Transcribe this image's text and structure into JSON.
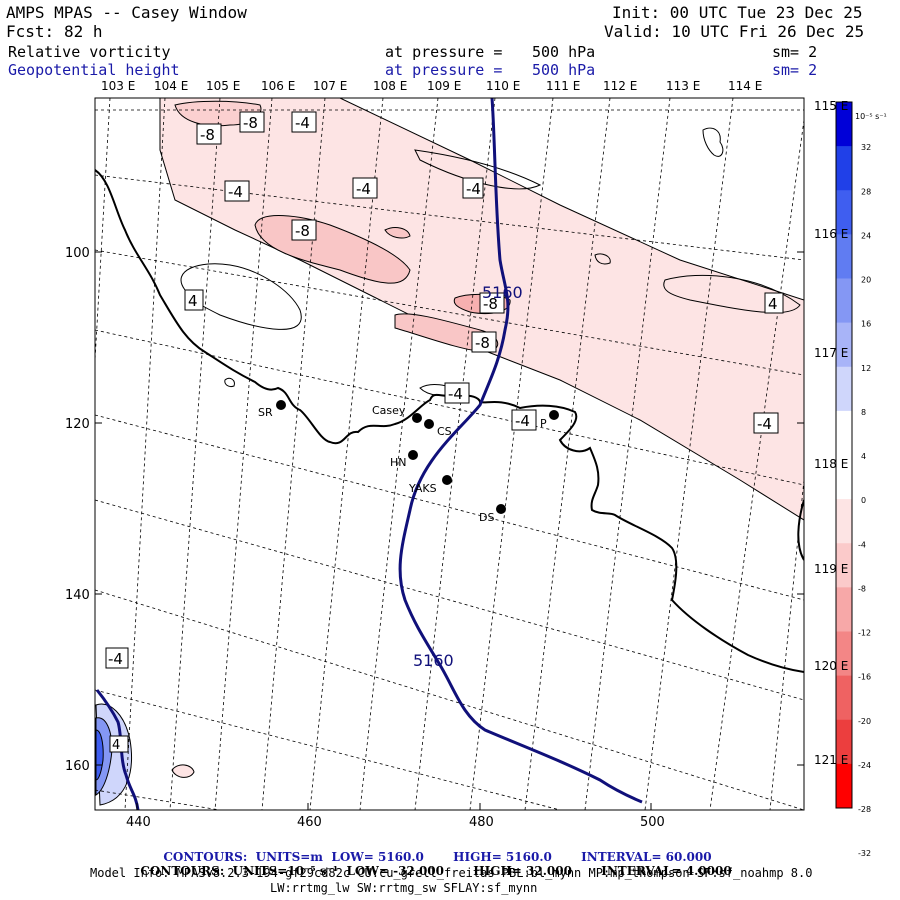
{
  "header": {
    "app_title": "AMPS MPAS -- Casey Window",
    "forecast_label": "Fcst:",
    "forecast_value": "82 h",
    "init": "Init: 00 UTC Tue 23 Dec 25",
    "valid": "Valid: 10 UTC Fri 26 Dec 25",
    "field1": {
      "name": "Relative vorticity",
      "pressure_label": "at pressure =",
      "pressure_value": "500 hPa",
      "smooth": "sm= 2"
    },
    "field2": {
      "name": "Geopotential height",
      "pressure_label": "at pressure =",
      "pressure_value": "500 hPa",
      "smooth": "sm= 2"
    }
  },
  "axes": {
    "top_lon": [
      "103 E",
      "104 E",
      "105 E",
      "106 E",
      "107 E",
      "108 E",
      "109 E",
      "110 E",
      "111 E",
      "112 E",
      "113 E",
      "114 E"
    ],
    "right_lat": [
      "115 E",
      "116 E",
      "117 E",
      "118 E",
      "119 E",
      "120 E",
      "121 E"
    ],
    "left_y": [
      "100",
      "120",
      "140",
      "160"
    ],
    "bottom_x": [
      "440",
      "460",
      "480",
      "500"
    ]
  },
  "colorbar": {
    "unit": "10⁻⁵ s⁻¹",
    "ticks": [
      "32",
      "28",
      "24",
      "20",
      "16",
      "12",
      "8",
      "4",
      "0",
      "-4",
      "-8",
      "-12",
      "-16",
      "-20",
      "-24",
      "-28",
      "-32"
    ],
    "colors": [
      "#0000d8",
      "#2040e8",
      "#3f5ef0",
      "#607cf2",
      "#8497f4",
      "#a8b4f8",
      "#cfd6fb",
      "#ffffff",
      "#ffffff",
      "#fde4e4",
      "#fbcaca",
      "#f7a8a8",
      "#f38686",
      "#ef6262",
      "#ec3e3e",
      "#ff0000"
    ]
  },
  "map": {
    "stations": [
      {
        "label": "SR"
      },
      {
        "label": "Casey"
      },
      {
        "label": "CS"
      },
      {
        "label": "HN"
      },
      {
        "label": "YAKS"
      },
      {
        "label": "DS"
      },
      {
        "label": "P"
      }
    ],
    "height_label": "5160",
    "vort_labels": [
      "-8",
      "-8",
      "-4",
      "-4",
      "-4",
      "-4",
      "-8",
      "4",
      "-8",
      "-8",
      "4",
      "-4",
      "-4",
      "-4",
      "-4",
      "4"
    ]
  },
  "footer": {
    "line1": {
      "contours": "CONTOURS:",
      "units": "UNITS=m",
      "low": "LOW= 5160.0",
      "high": "HIGH= 5160.0",
      "interval": "INTERVAL= 60.000"
    },
    "line2": {
      "contours": "CONTOURS:",
      "units": "UNITS=10⁻⁵ s⁻¹",
      "low": "LOW= -32.000",
      "high": "HIGH= 32.000",
      "interval": "INTERVAL= 4.0000"
    },
    "model_info": "Model Info: MPASv8.2.3-194-gf29cd82c CU:cu_grell_freitas PBL:bl_mynn MP:mp_thompson SF:sf_noahmp 8.0",
    "model_info2": "LW:rrtmg_lw SW:rrtmg_sw SFLAY:sf_mynn"
  }
}
